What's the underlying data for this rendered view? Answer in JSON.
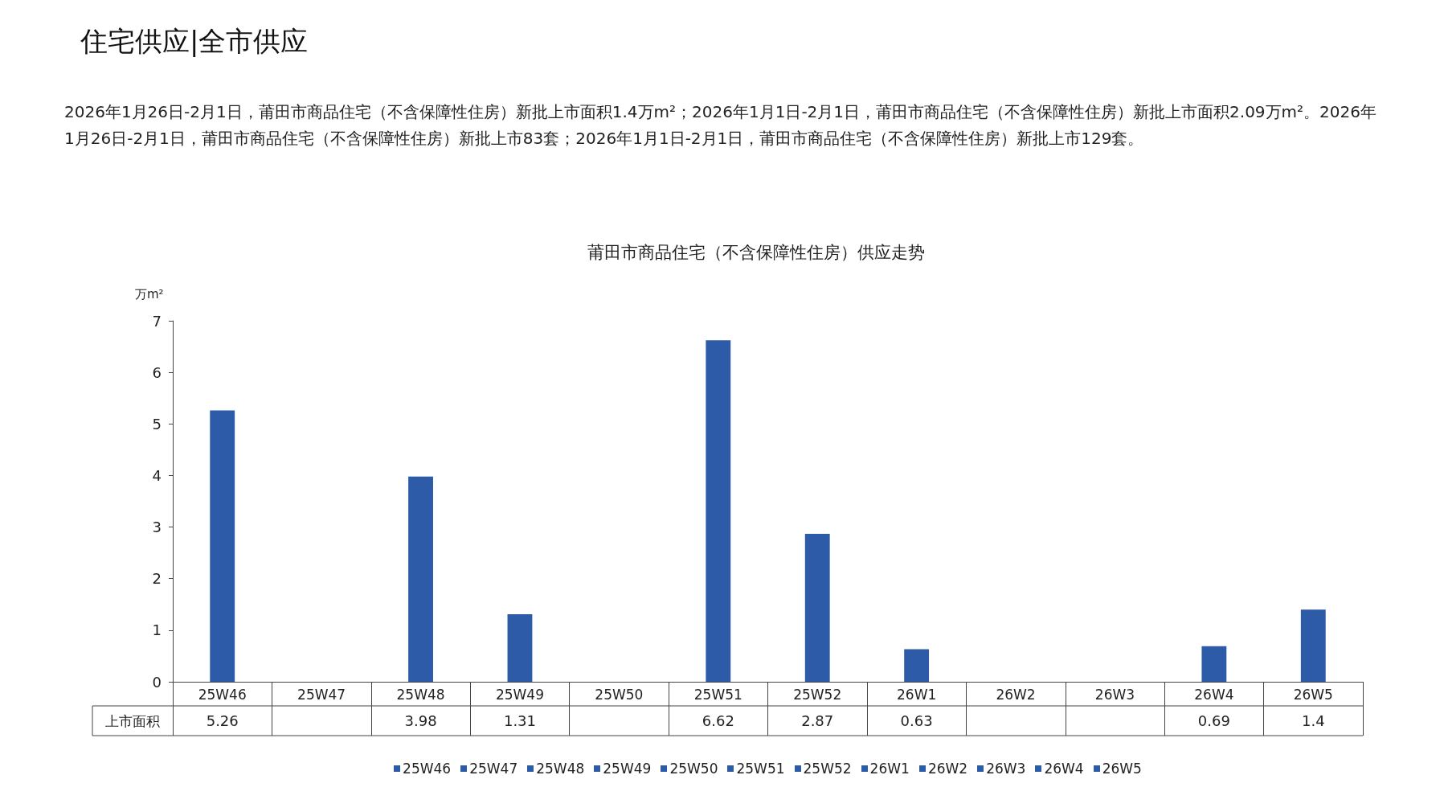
{
  "chart_data": {
    "type": "bar",
    "title": "莆田市商品住宅（不含保障性住房）供应走势",
    "annotations": [
      "住宅供应|全市供应",
      "2026年1月26日-2月1日，莆田市商品住宅（不含保障性住房）新批上市面积1.4万m²；2026年1月1日-2月1日，莆田市商品住宅（不含保障性住房）新批上市面积2.09万m²。2026年1月26日-2月1日，莆田市商品住宅（不含保障性住房）新批上市83套；2026年1月1日-2月1日，莆田市商品住宅（不含保障性住房）新批上市129套。"
    ],
    "ylabel": "万m²",
    "categories": [
      "25W46",
      "25W47",
      "25W48",
      "25W49",
      "25W50",
      "25W51",
      "25W52",
      "26W1",
      "26W2",
      "26W3",
      "26W4",
      "26W5"
    ],
    "series": [
      {
        "name": "上市面积",
        "color": "#2e5ba8",
        "values": [
          5.26,
          null,
          3.98,
          1.31,
          null,
          6.62,
          2.87,
          0.63,
          null,
          null,
          0.69,
          1.4
        ]
      }
    ],
    "ylim": [
      0,
      7
    ],
    "yticks": [
      0,
      1,
      2,
      3,
      4,
      5,
      6,
      7
    ],
    "grid": false,
    "legend": "bottom",
    "data_labels": true
  }
}
